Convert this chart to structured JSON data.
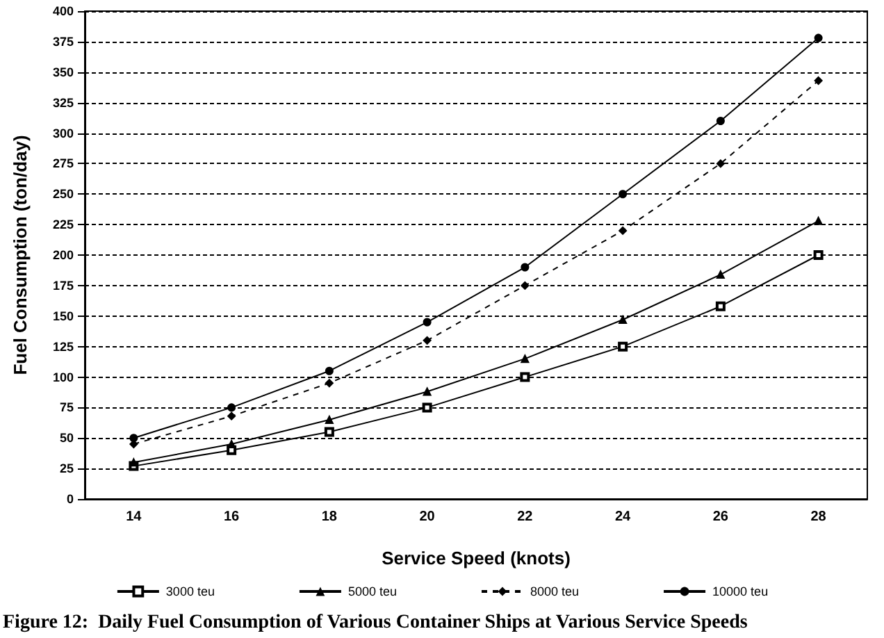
{
  "chart_data": {
    "type": "line",
    "xlabel": "Service Speed (knots)",
    "ylabel": "Fuel Consumption (ton/day)",
    "categories": [
      "14",
      "16",
      "18",
      "20",
      "22",
      "24",
      "26",
      "28"
    ],
    "series": [
      {
        "name": "3000 teu",
        "color": "#000000",
        "marker": "square",
        "line_style": "solid",
        "values": [
          27,
          40,
          55,
          75,
          100,
          125,
          158,
          200
        ]
      },
      {
        "name": "5000 teu",
        "color": "#000000",
        "marker": "triangle",
        "line_style": "solid",
        "values": [
          30,
          45,
          65,
          88,
          115,
          147,
          184,
          228
        ]
      },
      {
        "name": "8000 teu",
        "color": "#000000",
        "marker": "diamond",
        "line_style": "dashed",
        "values": [
          45,
          68,
          95,
          130,
          175,
          220,
          275,
          343
        ]
      },
      {
        "name": "10000 teu",
        "color": "#000000",
        "marker": "circle",
        "line_style": "solid",
        "values": [
          50,
          75,
          105,
          145,
          190,
          250,
          310,
          378
        ]
      }
    ],
    "ylim": [
      0,
      400
    ],
    "yticks": [
      0,
      25,
      50,
      75,
      100,
      125,
      150,
      175,
      200,
      225,
      250,
      275,
      300,
      325,
      350,
      375,
      400
    ],
    "grid": "y",
    "legend": "bottom",
    "annotations": [
      "Figure 12:  Daily Fuel Consumption of Various Container Ships at Various Service Speeds"
    ]
  }
}
